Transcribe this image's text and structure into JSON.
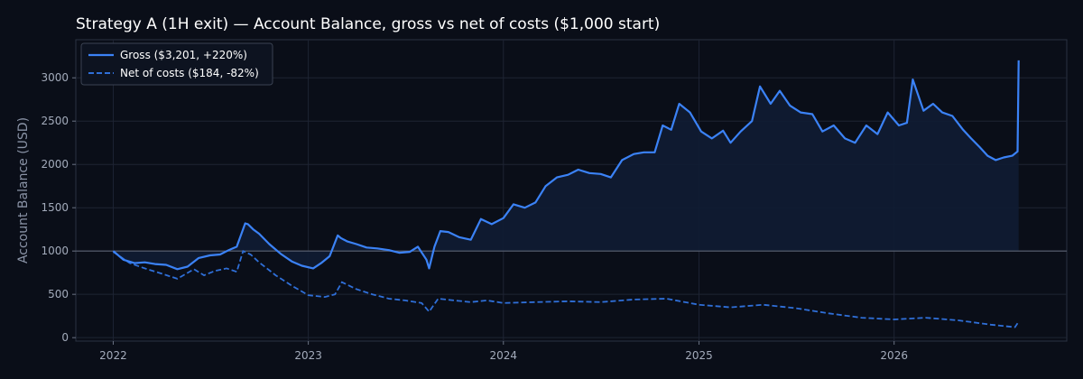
{
  "chart_data": {
    "type": "line",
    "title": "Strategy A (1H exit) — Account Balance, gross vs net of costs ($1,000 start)",
    "xlabel": "",
    "ylabel": "Account Balance (USD)",
    "x_ticks": [
      "2022",
      "2023",
      "2024",
      "2025",
      "2026"
    ],
    "y_ticks": [
      "0",
      "500",
      "1000",
      "1500",
      "2000",
      "2500",
      "3000"
    ],
    "xlim": [
      "2021-10-23",
      "2026-11-20"
    ],
    "ylim": [
      -40,
      3440
    ],
    "grid": true,
    "baseline": 1000,
    "legend_position": "top-left",
    "colors": {
      "gross": "#3b82f6",
      "net": "#2f6fd8",
      "fill": "#0f1c33",
      "baseline": "#5a6272"
    },
    "series": [
      {
        "name": "Gross ($3,201, +220%)",
        "style": "solid",
        "x": [
          "2022-01-01",
          "2022-01-20",
          "2022-02-10",
          "2022-03-01",
          "2022-03-20",
          "2022-04-10",
          "2022-05-01",
          "2022-05-20",
          "2022-06-10",
          "2022-07-01",
          "2022-07-20",
          "2022-08-05",
          "2022-08-20",
          "2022-09-05",
          "2022-09-10",
          "2022-09-20",
          "2022-10-01",
          "2022-10-20",
          "2022-11-10",
          "2022-12-01",
          "2022-12-20",
          "2023-01-10",
          "2023-01-25",
          "2023-02-10",
          "2023-02-25",
          "2023-03-03",
          "2023-03-15",
          "2023-04-01",
          "2023-04-20",
          "2023-05-10",
          "2023-06-01",
          "2023-06-20",
          "2023-07-10",
          "2023-07-25",
          "2023-08-10",
          "2023-08-15",
          "2023-08-25",
          "2023-09-05",
          "2023-09-20",
          "2023-10-10",
          "2023-11-01",
          "2023-11-20",
          "2023-12-10",
          "2024-01-01",
          "2024-01-20",
          "2024-02-10",
          "2024-03-01",
          "2024-03-20",
          "2024-04-10",
          "2024-05-01",
          "2024-05-20",
          "2024-06-10",
          "2024-07-01",
          "2024-07-20",
          "2024-08-10",
          "2024-09-01",
          "2024-09-20",
          "2024-10-10",
          "2024-10-25",
          "2024-11-10",
          "2024-11-25",
          "2024-12-15",
          "2025-01-05",
          "2025-01-25",
          "2025-02-15",
          "2025-03-01",
          "2025-03-20",
          "2025-04-10",
          "2025-04-25",
          "2025-05-15",
          "2025-06-01",
          "2025-06-20",
          "2025-07-10",
          "2025-08-01",
          "2025-08-20",
          "2025-09-10",
          "2025-10-01",
          "2025-10-20",
          "2025-11-10",
          "2025-12-01",
          "2025-12-20",
          "2026-01-10",
          "2026-01-25",
          "2026-02-05",
          "2026-02-25",
          "2026-03-15",
          "2026-04-01",
          "2026-04-20",
          "2026-05-10",
          "2026-05-25",
          "2026-06-10",
          "2026-06-25",
          "2026-07-10",
          "2026-07-25",
          "2026-08-10",
          "2026-08-20",
          "2026-08-22"
        ],
        "values": [
          1000,
          900,
          860,
          870,
          850,
          840,
          790,
          820,
          920,
          950,
          960,
          1010,
          1050,
          1320,
          1310,
          1250,
          1200,
          1080,
          970,
          880,
          830,
          800,
          860,
          940,
          1180,
          1150,
          1110,
          1080,
          1040,
          1030,
          1010,
          980,
          990,
          1050,
          900,
          800,
          1050,
          1230,
          1220,
          1160,
          1130,
          1370,
          1310,
          1380,
          1540,
          1500,
          1560,
          1750,
          1850,
          1880,
          1940,
          1900,
          1890,
          1850,
          2050,
          2120,
          2140,
          2140,
          2450,
          2400,
          2700,
          2600,
          2380,
          2300,
          2390,
          2250,
          2380,
          2500,
          2900,
          2700,
          2850,
          2680,
          2600,
          2580,
          2380,
          2450,
          2300,
          2250,
          2450,
          2350,
          2600,
          2450,
          2480,
          2980,
          2620,
          2700,
          2600,
          2560,
          2400,
          2300,
          2200,
          2100,
          2050,
          2080,
          2100,
          2150,
          3201
        ]
      },
      {
        "name": "Net of costs ($184, -82%)",
        "style": "dashed",
        "x": [
          "2022-01-01",
          "2022-02-01",
          "2022-03-01",
          "2022-04-01",
          "2022-05-01",
          "2022-06-01",
          "2022-06-20",
          "2022-07-10",
          "2022-08-01",
          "2022-08-20",
          "2022-09-01",
          "2022-09-15",
          "2022-10-01",
          "2022-11-01",
          "2022-12-01",
          "2023-01-01",
          "2023-02-01",
          "2023-02-20",
          "2023-03-05",
          "2023-04-01",
          "2023-05-01",
          "2023-06-01",
          "2023-07-01",
          "2023-08-01",
          "2023-08-15",
          "2023-09-01",
          "2023-10-01",
          "2023-11-01",
          "2023-12-01",
          "2024-01-01",
          "2024-03-01",
          "2024-05-01",
          "2024-07-01",
          "2024-09-01",
          "2024-11-01",
          "2025-01-01",
          "2025-03-01",
          "2025-05-01",
          "2025-07-01",
          "2025-09-01",
          "2025-11-01",
          "2026-01-01",
          "2026-03-01",
          "2026-05-01",
          "2026-07-01",
          "2026-08-15",
          "2026-08-22"
        ],
        "values": [
          990,
          860,
          800,
          740,
          680,
          790,
          720,
          770,
          800,
          760,
          1000,
          960,
          870,
          720,
          600,
          490,
          470,
          500,
          640,
          560,
          500,
          450,
          430,
          400,
          300,
          450,
          430,
          410,
          430,
          400,
          410,
          420,
          410,
          440,
          450,
          380,
          350,
          380,
          340,
          280,
          230,
          210,
          230,
          200,
          150,
          120,
          184
        ]
      }
    ]
  }
}
